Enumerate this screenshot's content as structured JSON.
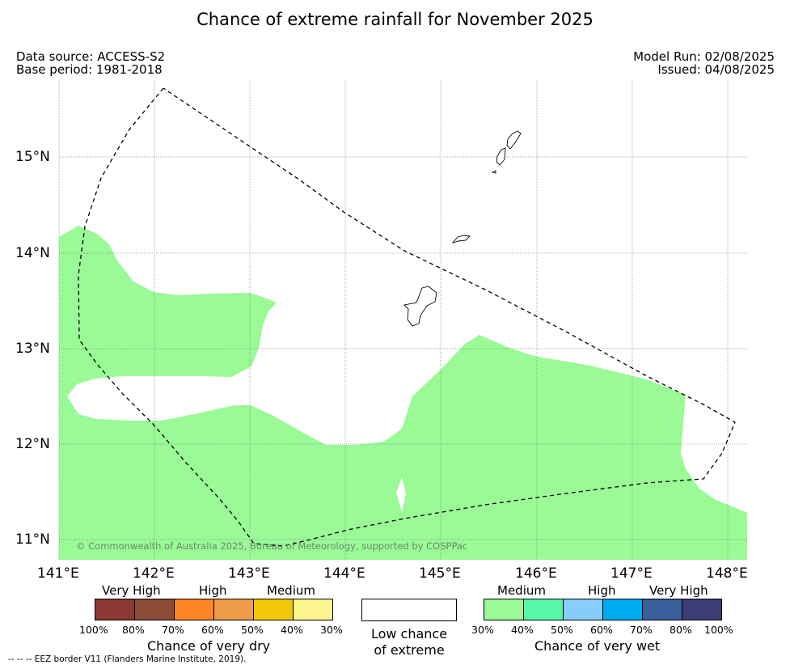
{
  "title": "Chance of extreme rainfall for November 2025",
  "meta": {
    "data_source": "Data source: ACCESS-S2",
    "base_period": "Base period: 1981-2018",
    "model_run": "Model Run: 02/08/2025",
    "issued": "Issued: 04/08/2025"
  },
  "map": {
    "copyright": "© Commonwealth of Australia 2025, Bureau of Meteorology, supported by COSPPac",
    "lon_ticks": [
      "141°E",
      "142°E",
      "143°E",
      "144°E",
      "145°E",
      "146°E",
      "147°E",
      "148°E"
    ],
    "lat_ticks": [
      "15°N",
      "14°N",
      "13°N",
      "12°N",
      "11°N"
    ],
    "fill_color": "#99fa96",
    "eez_line_style": "dashed"
  },
  "legend_dry": {
    "group_labels": [
      "Very High",
      "High",
      "Medium"
    ],
    "colors": [
      "#8c3833",
      "#8c4c3a",
      "#fc8424",
      "#ee9b4a",
      "#f0c808",
      "#fdf58e"
    ],
    "ticks": [
      "100%",
      "80%",
      "70%",
      "60%",
      "50%",
      "40%",
      "30%"
    ],
    "title": "Chance of very dry"
  },
  "legend_low": {
    "line1": "Low chance",
    "line2": "of extreme",
    "color": "#ffffff"
  },
  "legend_wet": {
    "group_labels": [
      "Medium",
      "High",
      "Very High"
    ],
    "colors": [
      "#99fa96",
      "#56f8a8",
      "#87cdfa",
      "#00acef",
      "#39609a",
      "#3e3c75"
    ],
    "ticks": [
      "30%",
      "40%",
      "50%",
      "60%",
      "70%",
      "80%",
      "100%"
    ],
    "title": "Chance of very wet"
  },
  "footnote": "--  --  -- EEZ border V11 (Flanders Marine Institute, 2019)."
}
